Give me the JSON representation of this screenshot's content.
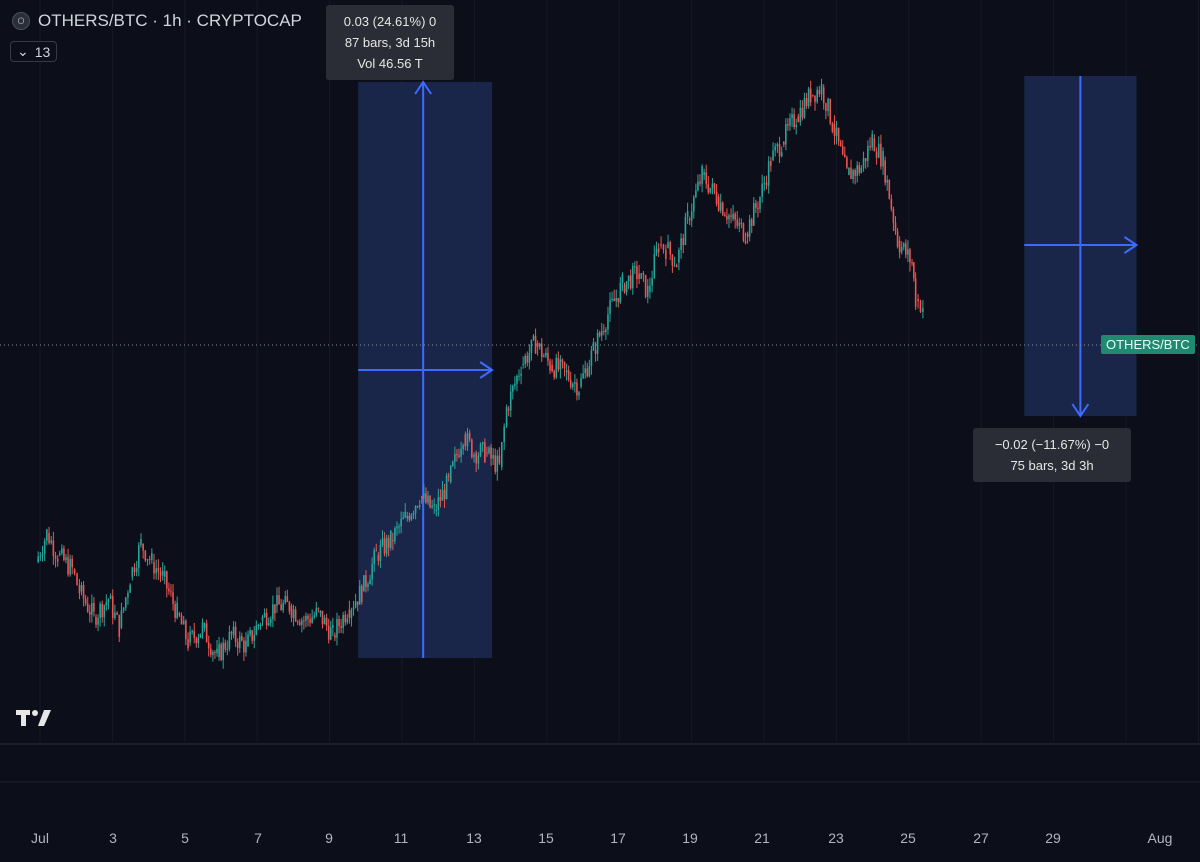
{
  "header": {
    "title": "OTHERS/BTC · 1h · CRYPTOCAP",
    "symbol_icon": "coin-logo-icon",
    "indicator_toggle": "13"
  },
  "tooltips": {
    "up": {
      "line1": "0.03 (24.61%) 0",
      "line2": "87 bars, 3d 15h",
      "line3": "Vol 46.56 T"
    },
    "down": {
      "line1": "−0.02 (−11.67%) −0",
      "line2": "75 bars, 3d 3h"
    }
  },
  "price_label": "OTHERS/BTC",
  "xaxis": {
    "labels": [
      "Jul",
      "3",
      "5",
      "7",
      "9",
      "11",
      "13",
      "15",
      "17",
      "19",
      "21",
      "23",
      "25",
      "27",
      "29",
      "Aug"
    ]
  },
  "colors": {
    "background": "#0c0f1a",
    "up_candle": "#26a69a",
    "down_candle": "#ef5350",
    "measure_fill": "#1c2a52",
    "measure_arrow": "#3d6bff",
    "price_label_bg": "#1f8a70"
  },
  "chart_data": {
    "type": "line",
    "title": "OTHERS/BTC · 1h · CRYPTOCAP",
    "xlabel": "",
    "ylabel": "",
    "x_unit": "days since Jul 1",
    "series": [
      {
        "values": [
          [
            0,
            0.7
          ],
          [
            0.3,
            0.78
          ],
          [
            0.6,
            0.72
          ],
          [
            1.0,
            0.68
          ],
          [
            1.2,
            0.62
          ],
          [
            1.6,
            0.55
          ],
          [
            2.0,
            0.6
          ],
          [
            2.3,
            0.52
          ],
          [
            2.6,
            0.66
          ],
          [
            2.9,
            0.75
          ],
          [
            3.2,
            0.7
          ],
          [
            3.5,
            0.66
          ],
          [
            3.9,
            0.56
          ],
          [
            4.2,
            0.48
          ],
          [
            4.6,
            0.52
          ],
          [
            5.0,
            0.44
          ],
          [
            5.4,
            0.5
          ],
          [
            5.8,
            0.47
          ],
          [
            6.2,
            0.54
          ],
          [
            6.6,
            0.58
          ],
          [
            7.0,
            0.58
          ],
          [
            7.4,
            0.54
          ],
          [
            7.8,
            0.56
          ],
          [
            8.2,
            0.5
          ],
          [
            8.6,
            0.57
          ],
          [
            9.0,
            0.62
          ],
          [
            9.4,
            0.72
          ],
          [
            9.8,
            0.76
          ],
          [
            10.2,
            0.82
          ],
          [
            10.6,
            0.88
          ],
          [
            11.0,
            0.84
          ],
          [
            11.4,
            0.92
          ],
          [
            11.8,
            1.05
          ],
          [
            12.1,
            1.0
          ],
          [
            12.4,
            1.0
          ],
          [
            12.8,
            0.96
          ],
          [
            13.0,
            1.12
          ],
          [
            13.4,
            1.24
          ],
          [
            13.8,
            1.3
          ],
          [
            14.2,
            1.24
          ],
          [
            14.6,
            1.22
          ],
          [
            15.0,
            1.18
          ],
          [
            15.4,
            1.28
          ],
          [
            15.8,
            1.38
          ],
          [
            16.2,
            1.46
          ],
          [
            16.6,
            1.49
          ],
          [
            16.9,
            1.44
          ],
          [
            17.2,
            1.57
          ],
          [
            17.4,
            1.56
          ],
          [
            17.7,
            1.52
          ],
          [
            18.0,
            1.64
          ],
          [
            18.4,
            1.76
          ],
          [
            18.8,
            1.7
          ],
          [
            19.2,
            1.64
          ],
          [
            19.6,
            1.6
          ],
          [
            20.0,
            1.7
          ],
          [
            20.3,
            1.8
          ],
          [
            20.6,
            1.85
          ],
          [
            21.0,
            1.92
          ],
          [
            21.4,
            1.98
          ],
          [
            21.7,
            2.0
          ],
          [
            22.0,
            1.9
          ],
          [
            22.4,
            1.76
          ],
          [
            22.8,
            1.78
          ],
          [
            23.1,
            1.86
          ],
          [
            23.4,
            1.8
          ],
          [
            23.8,
            1.58
          ],
          [
            24.2,
            1.52
          ],
          [
            24.3,
            1.42
          ],
          [
            24.5,
            1.4
          ]
        ]
      }
    ],
    "measures": [
      {
        "from_day": 8.9,
        "to_day": 12.6,
        "change": "0.03 (24.61%) 0",
        "bars": 87
      },
      {
        "from_day": 27.3,
        "to_day": 30.4,
        "change": "−0.02 (−11.67%) −0",
        "bars": 75
      }
    ],
    "grid": true
  }
}
